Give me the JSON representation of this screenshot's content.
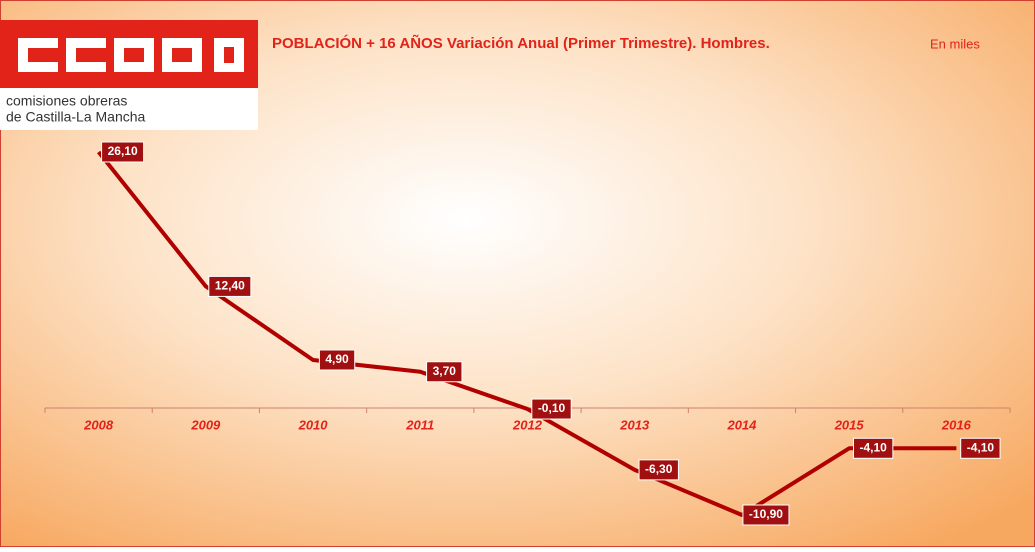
{
  "logo": {
    "line1": "comisiones obreras",
    "line2": "de Castilla-La Mancha"
  },
  "chart_data": {
    "type": "line",
    "title": "POBLACIÓN + 16 AÑOS Variación Anual (Primer Trimestre). Hombres.",
    "subtitle": "En miles",
    "categories": [
      "2008",
      "2009",
      "2010",
      "2011",
      "2012",
      "2013",
      "2014",
      "2015",
      "2016"
    ],
    "values": [
      26.1,
      12.4,
      4.9,
      3.7,
      -0.1,
      -6.3,
      -10.9,
      -4.1,
      -4.1
    ],
    "value_labels": [
      "26,10",
      "12,40",
      "4,90",
      "3,70",
      "-0,10",
      "-6,30",
      "-10,90",
      "-4,10",
      "-4,10"
    ],
    "color": "#b00000"
  }
}
